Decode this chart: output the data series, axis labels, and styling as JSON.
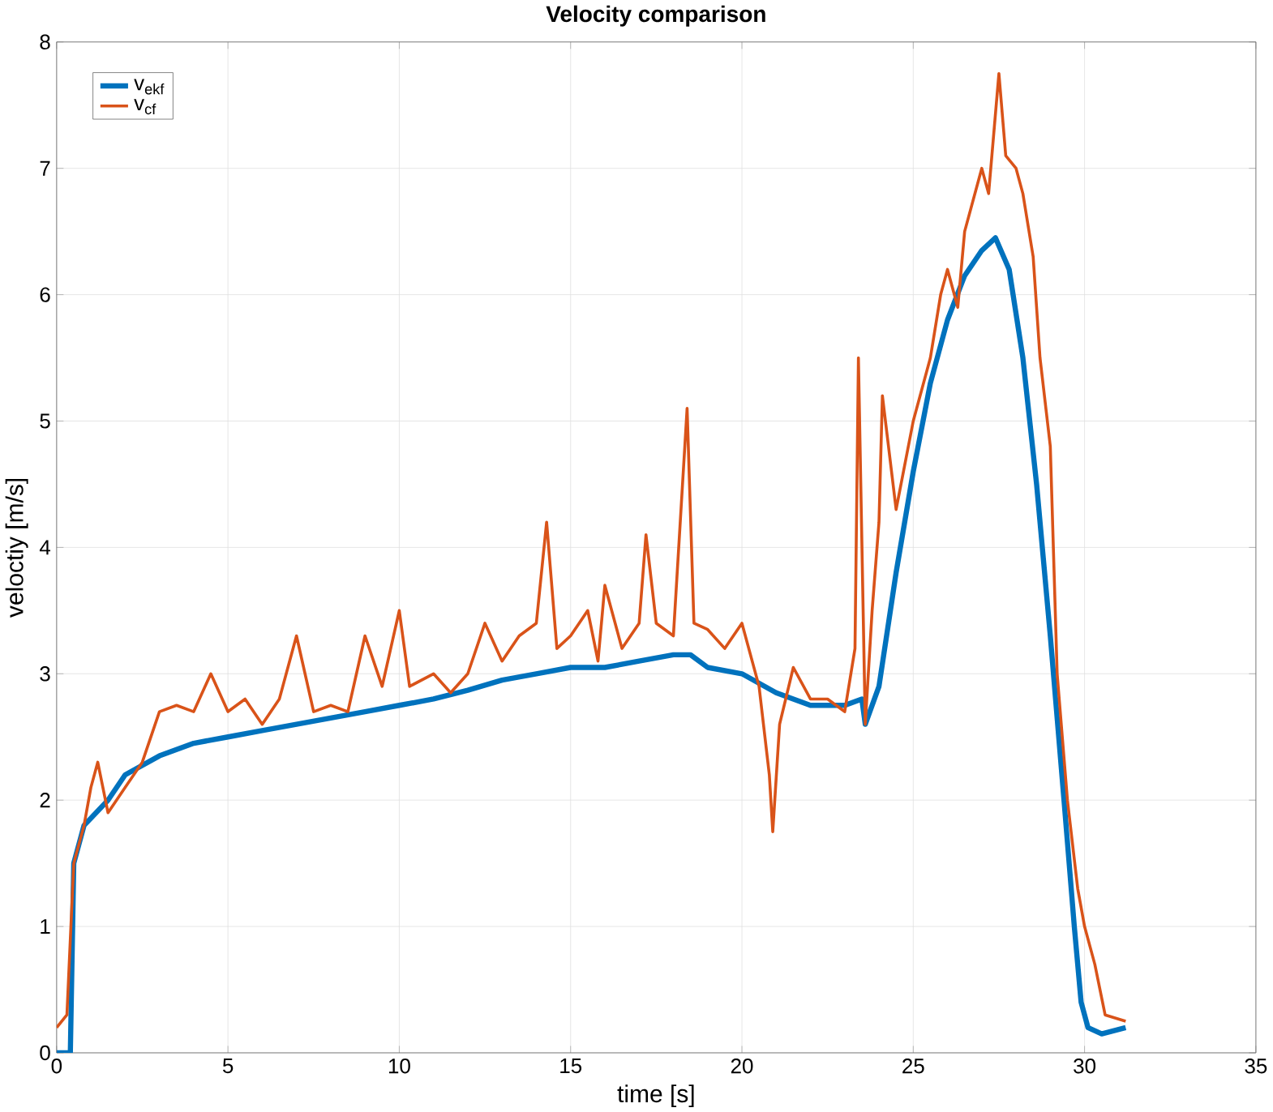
{
  "chart_data": {
    "type": "line",
    "title": "Velocity comparison",
    "xlabel": "time [s]",
    "ylabel": "veloctiy [m/s]",
    "xlim": [
      0,
      35
    ],
    "ylim": [
      0,
      8
    ],
    "xticks": [
      0,
      5,
      10,
      15,
      20,
      25,
      30,
      35
    ],
    "yticks": [
      0,
      1,
      2,
      3,
      4,
      5,
      6,
      7,
      8
    ],
    "grid": true,
    "legend": "top left",
    "series": [
      {
        "name": "v$_{ekf}$",
        "color": "#0072bd",
        "x": [
          0,
          0.4,
          0.5,
          0.8,
          1.5,
          2,
          3,
          4,
          5,
          6,
          7,
          8,
          9,
          10,
          11,
          12,
          13,
          14,
          15,
          16,
          17,
          18,
          18.5,
          19,
          20,
          21,
          22,
          23,
          23.5,
          23.6,
          24,
          24.5,
          25,
          25.5,
          26,
          26.5,
          27,
          27.4,
          27.8,
          28.2,
          28.6,
          29,
          29.4,
          29.7,
          29.9,
          30.1,
          30.5,
          31.2
        ],
        "values": [
          0,
          0,
          1.5,
          1.8,
          2.0,
          2.2,
          2.35,
          2.45,
          2.5,
          2.55,
          2.6,
          2.65,
          2.7,
          2.75,
          2.8,
          2.87,
          2.95,
          3.0,
          3.05,
          3.05,
          3.1,
          3.15,
          3.15,
          3.05,
          3.0,
          2.85,
          2.75,
          2.75,
          2.8,
          2.6,
          2.9,
          3.8,
          4.6,
          5.3,
          5.8,
          6.15,
          6.35,
          6.45,
          6.2,
          5.5,
          4.5,
          3.3,
          2.0,
          1.0,
          0.4,
          0.2,
          0.15,
          0.2
        ]
      },
      {
        "name": "v$_{cf}$",
        "color": "#d95319",
        "x": [
          0,
          0.3,
          0.5,
          0.8,
          1.0,
          1.2,
          1.5,
          2,
          2.5,
          3,
          3.5,
          4,
          4.5,
          5,
          5.5,
          6,
          6.5,
          7,
          7.5,
          8,
          8.5,
          9,
          9.5,
          10,
          10.3,
          11,
          11.5,
          12,
          12.5,
          13,
          13.5,
          14,
          14.3,
          14.6,
          15,
          15.5,
          15.8,
          16,
          16.5,
          17,
          17.2,
          17.5,
          18,
          18.4,
          18.6,
          19,
          19.5,
          20,
          20.5,
          20.8,
          20.9,
          21.1,
          21.5,
          22,
          22.5,
          23,
          23.3,
          23.4,
          23.6,
          23.8,
          24,
          24.1,
          24.5,
          25,
          25.5,
          25.8,
          26,
          26.3,
          26.5,
          27,
          27.2,
          27.5,
          27.7,
          28,
          28.2,
          28.5,
          28.7,
          29,
          29.2,
          29.5,
          29.8,
          30,
          30.3,
          30.6,
          31.2
        ],
        "values": [
          0.2,
          0.3,
          1.5,
          1.8,
          2.1,
          2.3,
          1.9,
          2.1,
          2.3,
          2.7,
          2.75,
          2.7,
          3.0,
          2.7,
          2.8,
          2.6,
          2.8,
          3.3,
          2.7,
          2.75,
          2.7,
          3.3,
          2.9,
          3.5,
          2.9,
          3.0,
          2.85,
          3.0,
          3.4,
          3.1,
          3.3,
          3.4,
          4.2,
          3.2,
          3.3,
          3.5,
          3.1,
          3.7,
          3.2,
          3.4,
          4.1,
          3.4,
          3.3,
          5.1,
          3.4,
          3.35,
          3.2,
          3.4,
          2.9,
          2.2,
          1.75,
          2.6,
          3.05,
          2.8,
          2.8,
          2.7,
          3.2,
          5.5,
          2.6,
          3.5,
          4.2,
          5.2,
          4.3,
          5.0,
          5.5,
          6.0,
          6.2,
          5.9,
          6.5,
          7.0,
          6.8,
          7.75,
          7.1,
          7.0,
          6.8,
          6.3,
          5.5,
          4.8,
          3.0,
          2.0,
          1.3,
          1.0,
          0.7,
          0.3,
          0.25
        ]
      }
    ]
  }
}
